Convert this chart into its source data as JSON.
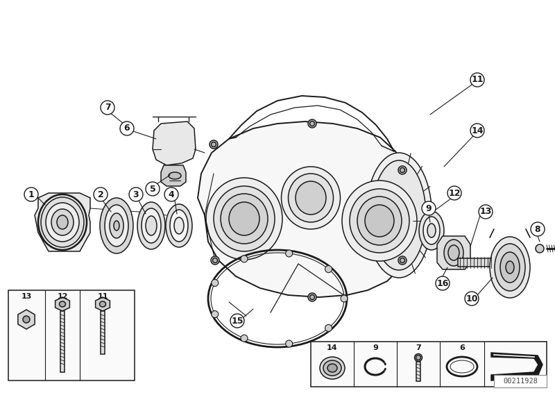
{
  "background_color": "#ffffff",
  "line_color": "#1a1a1a",
  "fill_white": "#ffffff",
  "fill_light": "#f0f0f0",
  "fill_med": "#d8d8d8",
  "fill_dark": "#aaaaaa",
  "fill_black": "#111111",
  "watermark": "00211928",
  "font_size": 9,
  "label_r": 10,
  "lw_main": 1.1,
  "lw_thin": 0.7,
  "lw_thick": 1.6
}
